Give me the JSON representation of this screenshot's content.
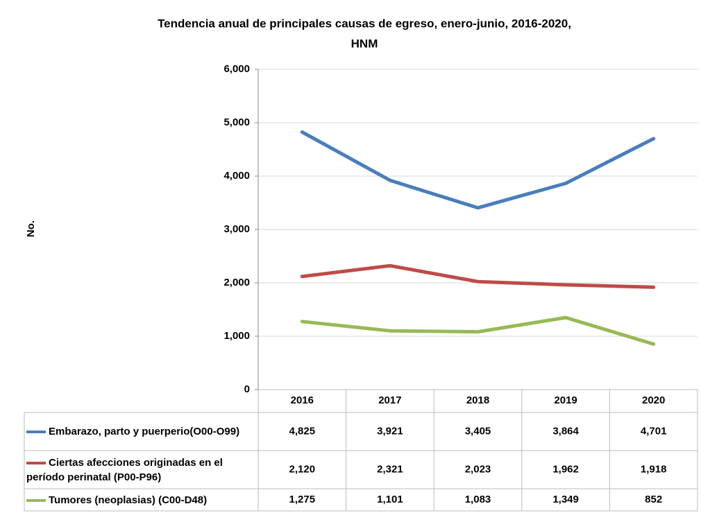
{
  "chart_data": {
    "type": "line",
    "title": [
      "Tendencia anual de principales causas de egreso, enero-junio, 2016-2020,",
      "HNM"
    ],
    "y_label": "No.",
    "categories": [
      "2016",
      "2017",
      "2018",
      "2019",
      "2020"
    ],
    "series": [
      {
        "name": "Embarazo, parto y puerperio(O00-O99)",
        "color": "#4a7ebb",
        "values": [
          4825,
          3921,
          3405,
          3864,
          4701
        ],
        "value_labels": [
          "4,825",
          "3,921",
          "3,405",
          "3,864",
          "4,701"
        ]
      },
      {
        "name": "Ciertas afecciones originadas en el período perinatal (P00-P96)",
        "color": "#be4b48",
        "values": [
          2120,
          2321,
          2023,
          1962,
          1918
        ],
        "value_labels": [
          "2,120",
          "2,321",
          "2,023",
          "1,962",
          "1,918"
        ]
      },
      {
        "name": "Tumores (neoplasias) (C00-D48)",
        "color": "#98b954",
        "values": [
          1275,
          1101,
          1083,
          1349,
          852
        ],
        "value_labels": [
          "1,275",
          "1,101",
          "1,083",
          "1,349",
          "852"
        ]
      }
    ],
    "ylim": [
      0,
      6000
    ],
    "yticks": [
      0,
      {
        "value": 1000,
        "label": "1,000"
      },
      {
        "value": 2000,
        "label": "2,000"
      },
      {
        "value": 3000,
        "label": "3,000"
      },
      {
        "value": 4000,
        "label": "4,000"
      },
      {
        "value": 5000,
        "label": "5,000"
      },
      {
        "value": 6000,
        "label": "6,000"
      }
    ],
    "grid": true
  }
}
